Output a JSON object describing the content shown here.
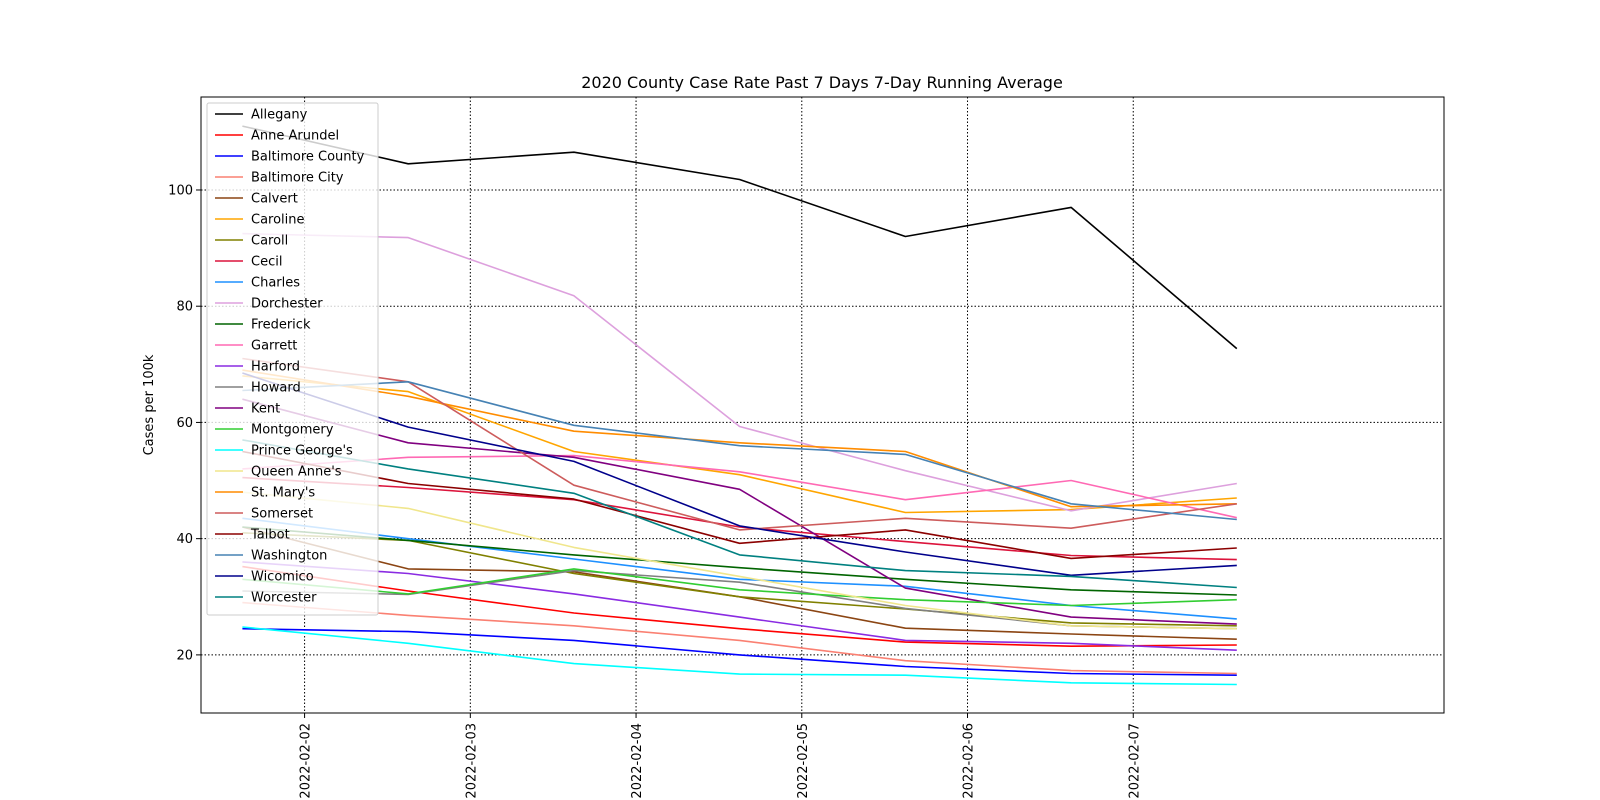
{
  "chart_data": {
    "type": "line",
    "title": "2020 County Case Rate  Past 7 Days 7-Day Running Average",
    "xlabel": "",
    "ylabel": "Cases per 100k",
    "x": [
      "2022-02-01T15:00",
      "2022-02-02T15:00",
      "2022-02-03T15:00",
      "2022-02-04T15:00",
      "2022-02-05T15:00",
      "2022-02-06T15:00",
      "2022-02-07T15:00"
    ],
    "xlim": [
      "2022-02-01T09:00",
      "2022-02-08T21:00"
    ],
    "xticks": [
      "2022-02-02",
      "2022-02-03",
      "2022-02-04",
      "2022-02-05",
      "2022-02-06",
      "2022-02-07"
    ],
    "ylim": [
      10,
      116
    ],
    "yticks": [
      20,
      40,
      60,
      80,
      100
    ],
    "grid": true,
    "grid_style": "dotted",
    "legend_position": "top-left",
    "series": [
      {
        "name": "Allegany",
        "color": "#000000",
        "values": [
          111.0,
          104.5,
          106.5,
          101.8,
          92.0,
          97.0,
          72.7
        ]
      },
      {
        "name": "Anne Arundel",
        "color": "#ff0000",
        "values": [
          35.2,
          31.0,
          27.2,
          24.5,
          22.2,
          21.5,
          21.7
        ]
      },
      {
        "name": "Baltimore County",
        "color": "#0000ff",
        "values": [
          24.5,
          24.0,
          22.5,
          20.0,
          18.0,
          16.8,
          16.5
        ]
      },
      {
        "name": "Baltimore City",
        "color": "#fa8072",
        "values": [
          29.0,
          26.8,
          25.0,
          22.5,
          19.0,
          17.3,
          16.8
        ]
      },
      {
        "name": "Calvert",
        "color": "#8b4513",
        "values": [
          42.0,
          34.8,
          34.3,
          30.0,
          24.6,
          23.6,
          22.7
        ]
      },
      {
        "name": "Caroline",
        "color": "#ffa500",
        "values": [
          68.0,
          65.3,
          55.0,
          51.0,
          44.5,
          45.0,
          47.0
        ]
      },
      {
        "name": "Caroll",
        "color": "#808000",
        "values": [
          41.0,
          39.7,
          34.0,
          30.0,
          27.9,
          25.5,
          25.0
        ]
      },
      {
        "name": "Cecil",
        "color": "#dc143c",
        "values": [
          50.5,
          48.8,
          46.7,
          42.0,
          39.5,
          37.1,
          36.4
        ]
      },
      {
        "name": "Charles",
        "color": "#1e90ff",
        "values": [
          43.5,
          40.0,
          36.5,
          33.0,
          31.8,
          28.5,
          26.2
        ]
      },
      {
        "name": "Dorchester",
        "color": "#dda0dd",
        "values": [
          92.5,
          91.8,
          81.8,
          59.3,
          51.7,
          44.8,
          49.5
        ]
      },
      {
        "name": "Frederick",
        "color": "#006400",
        "values": [
          42.0,
          39.7,
          37.2,
          35.0,
          33.0,
          31.2,
          30.3
        ]
      },
      {
        "name": "Garrett",
        "color": "#ff69b4",
        "values": [
          52.0,
          54.0,
          54.3,
          51.5,
          46.7,
          50.0,
          43.6
        ]
      },
      {
        "name": "Harford",
        "color": "#8a2be2",
        "values": [
          36.0,
          34.0,
          30.5,
          26.5,
          22.5,
          22.0,
          20.8
        ]
      },
      {
        "name": "Howard",
        "color": "#808080",
        "values": [
          31.0,
          30.4,
          34.5,
          32.5,
          28.0,
          25.0,
          24.5
        ]
      },
      {
        "name": "Kent",
        "color": "#800080",
        "values": [
          64.0,
          56.5,
          54.0,
          48.5,
          31.5,
          26.5,
          25.3
        ]
      },
      {
        "name": "Montgomery",
        "color": "#32cd32",
        "values": [
          33.0,
          30.5,
          34.8,
          31.2,
          29.5,
          28.5,
          29.5
        ]
      },
      {
        "name": "Prince George's",
        "color": "#00ffff",
        "values": [
          24.8,
          22.0,
          18.5,
          16.7,
          16.5,
          15.2,
          14.9
        ]
      },
      {
        "name": "Queen Anne's",
        "color": "#f0e68c",
        "values": [
          48.0,
          45.2,
          38.5,
          33.5,
          28.5,
          25.0,
          24.5
        ]
      },
      {
        "name": "St. Mary's",
        "color": "#ff8c00",
        "values": [
          69.0,
          64.5,
          58.5,
          56.5,
          55.0,
          45.5,
          46.0
        ]
      },
      {
        "name": "Somerset",
        "color": "#cd5c5c",
        "values": [
          71.0,
          67.0,
          49.2,
          41.5,
          43.5,
          41.8,
          46.0
        ]
      },
      {
        "name": "Talbot",
        "color": "#8b0000",
        "values": [
          55.0,
          49.5,
          46.8,
          39.2,
          41.5,
          36.6,
          38.4
        ]
      },
      {
        "name": "Washington",
        "color": "#4682b4",
        "values": [
          65.5,
          67.0,
          59.5,
          56.0,
          54.5,
          46.0,
          43.3
        ]
      },
      {
        "name": "Wicomico",
        "color": "#00008b",
        "values": [
          68.5,
          59.2,
          53.3,
          42.2,
          37.7,
          33.7,
          35.4
        ]
      },
      {
        "name": "Worcester",
        "color": "#008080",
        "values": [
          57.0,
          52.0,
          47.8,
          37.2,
          34.5,
          33.5,
          31.6
        ]
      }
    ]
  }
}
